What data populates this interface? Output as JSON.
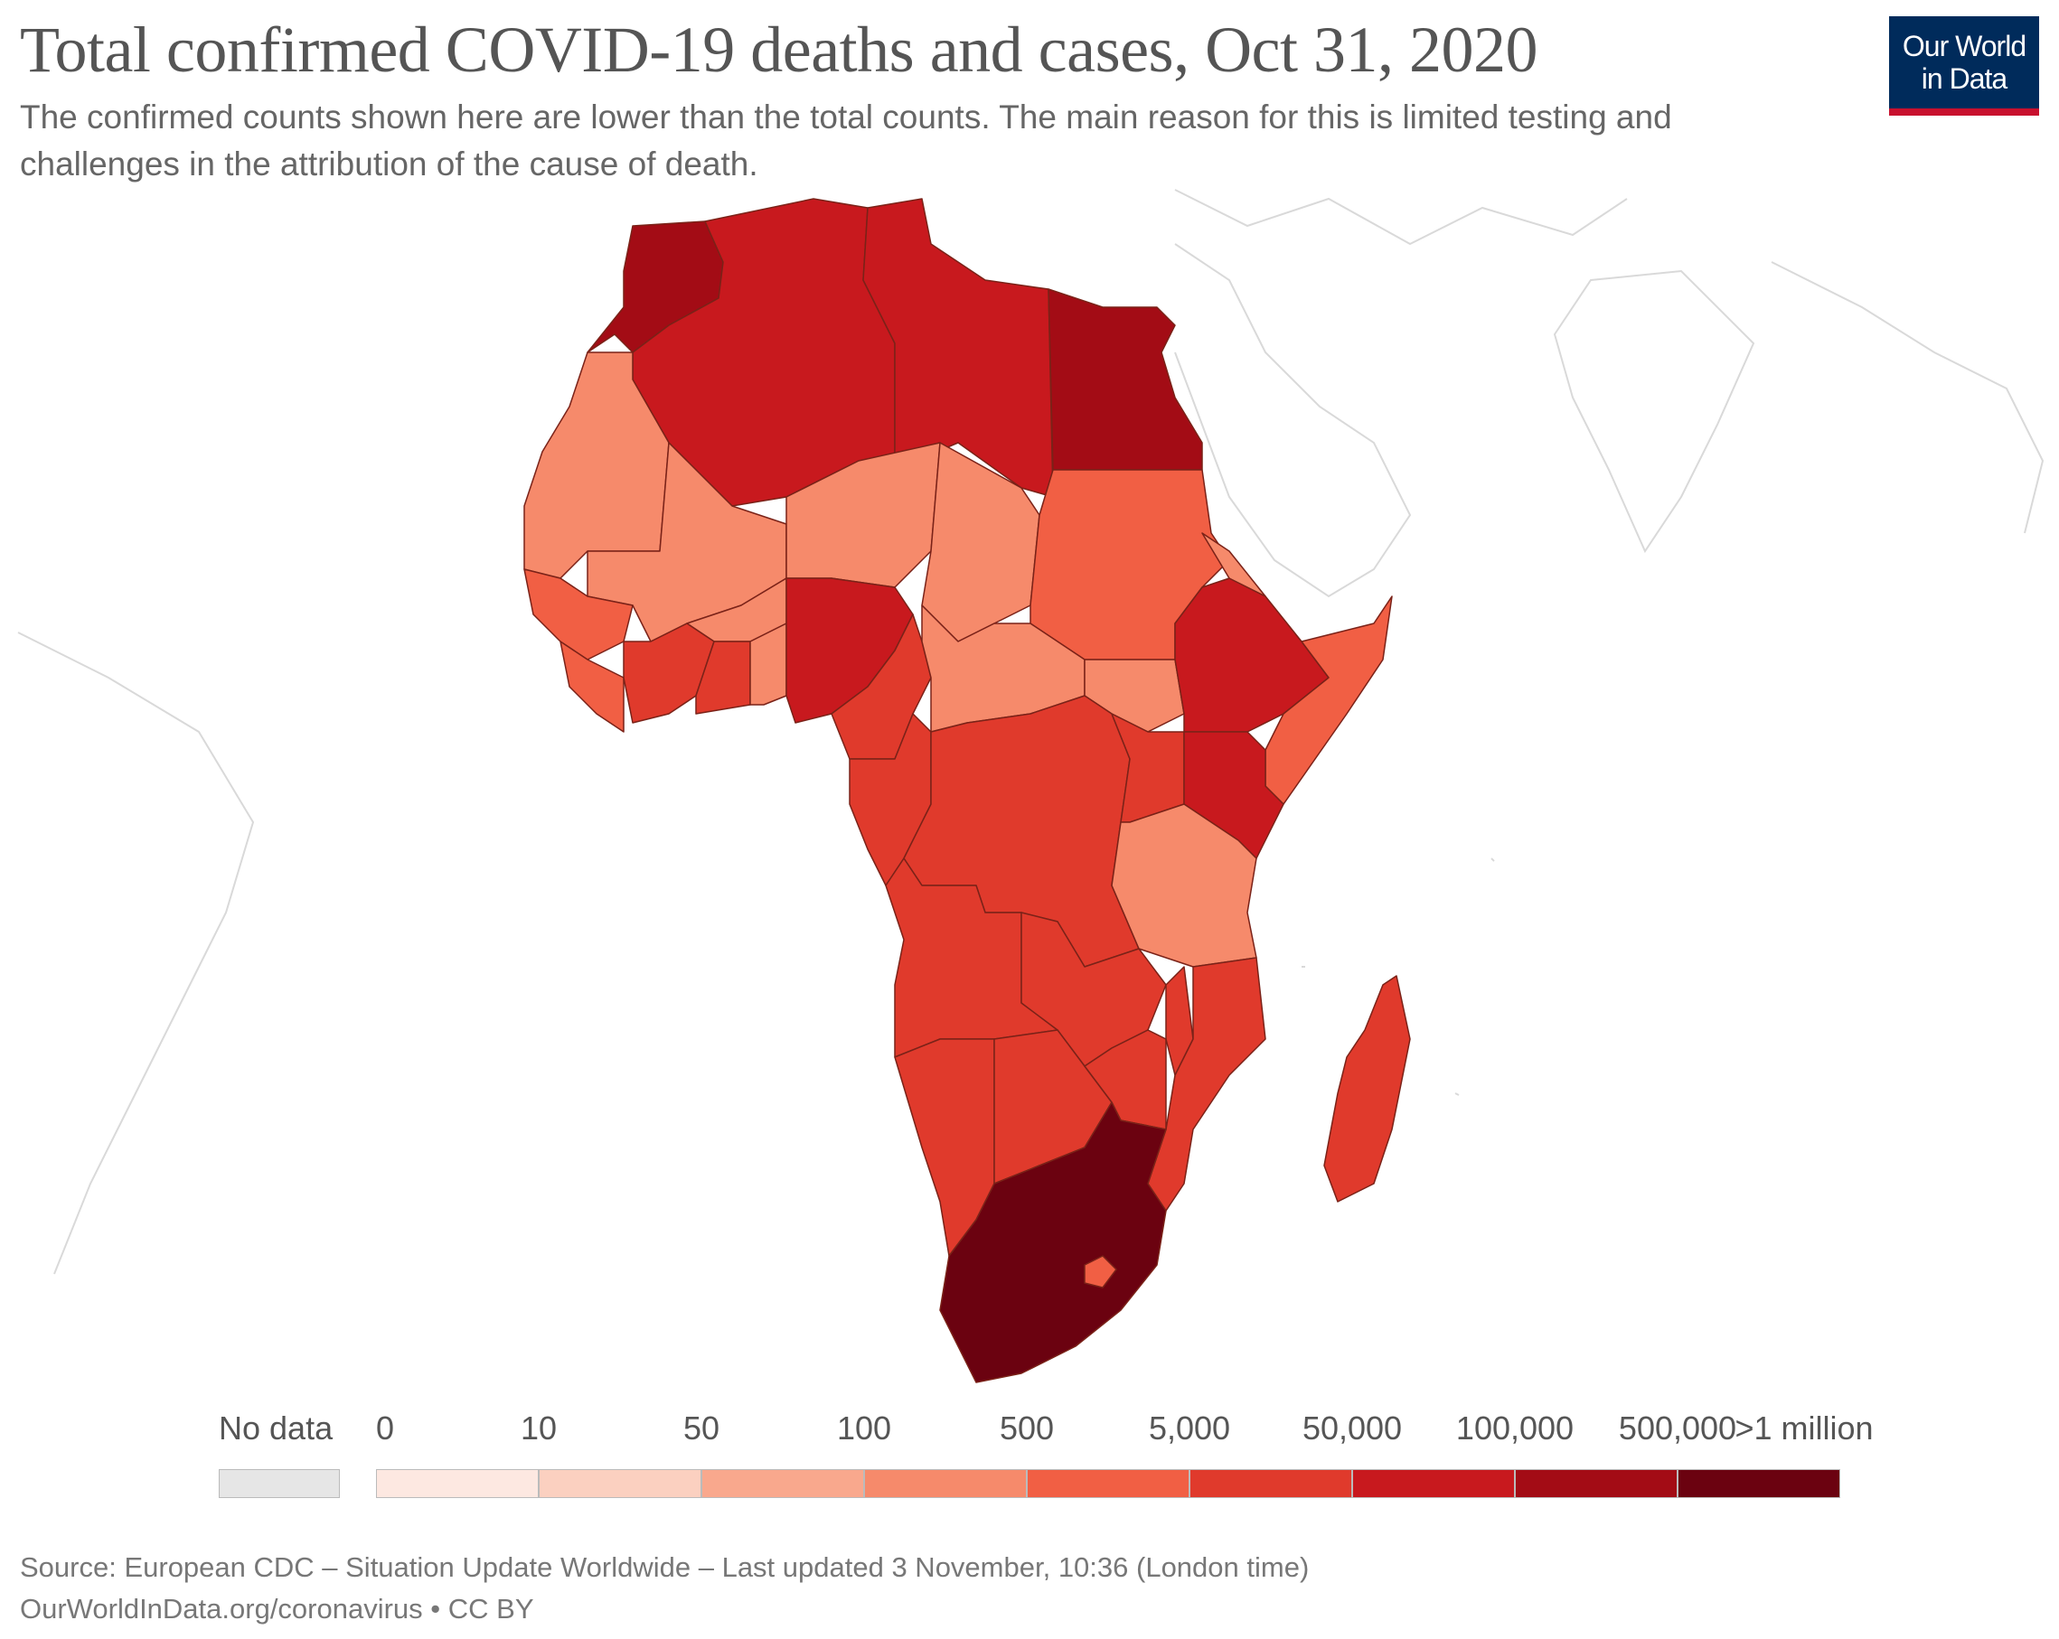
{
  "header": {
    "title": "Total confirmed COVID-19 deaths and cases, Oct 31, 2020",
    "subtitle": "The confirmed counts shown here are lower than the total counts. The main reason for this is limited testing and challenges in the attribution of the cause of death.",
    "logo_line1": "Our World",
    "logo_line2": "in Data"
  },
  "legend": {
    "no_data_label": "No data",
    "no_data_color": "#e6e6e6",
    "tick_labels": [
      "0",
      "10",
      "50",
      "100",
      "500",
      "5,000",
      "50,000",
      "100,000",
      "500,000",
      ">1 million"
    ],
    "bins": [
      {
        "color": "#fde8e1"
      },
      {
        "color": "#fbd0c0"
      },
      {
        "color": "#f9a88d"
      },
      {
        "color": "#f68a6b"
      },
      {
        "color": "#f15f44"
      },
      {
        "color": "#e03a2c"
      },
      {
        "color": "#c8191e"
      },
      {
        "color": "#a30c15"
      },
      {
        "color": "#6b0210"
      }
    ]
  },
  "map": {
    "colors": {
      "land_empty": "#ffffff",
      "border": "#d6d6d6",
      "country_border": "#6e1a12"
    }
  },
  "footer": {
    "source": "Source: European CDC – Situation Update Worldwide – Last updated 3 November, 10:36 (London time)",
    "link": "OurWorldInData.org/coronavirus • CC BY"
  }
}
